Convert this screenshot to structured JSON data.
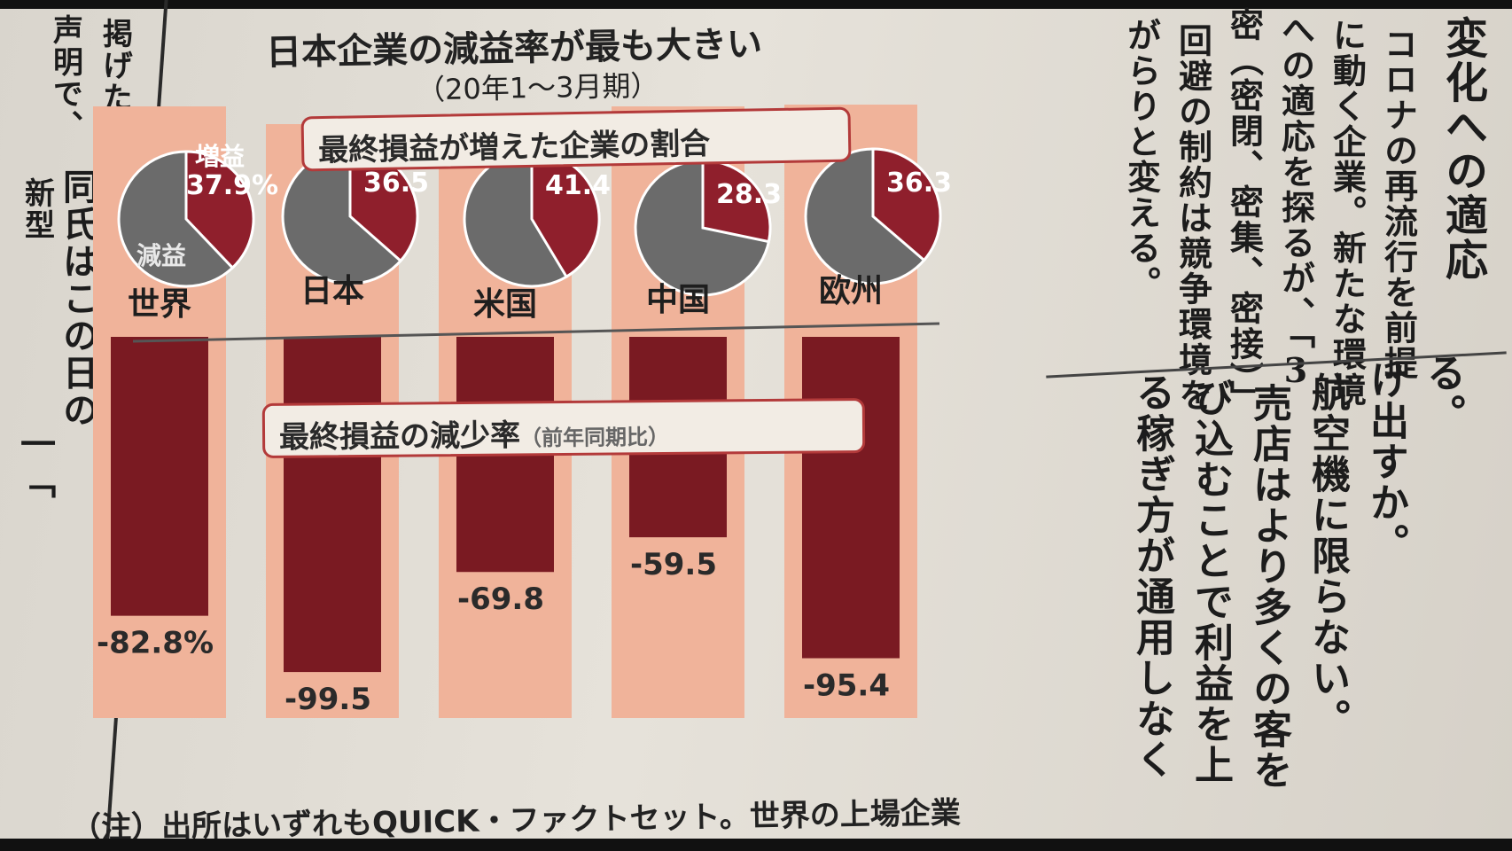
{
  "colors": {
    "column_bg": "#f0b39a",
    "decrease_bar": "#7a1a22",
    "pie_increase": "#8f1f2c",
    "pie_decrease": "#6b6b6b"
  },
  "chart": {
    "title": "日本企業の減益率が最も大きい",
    "subtitle": "（20年1～3月期）",
    "pie_section_title": "最終損益が増えた企業の割合",
    "bar_section_title": "最終損益の減少率",
    "bar_section_note": "（前年同期比）",
    "legend_increase": "増益",
    "legend_decrease": "減益",
    "note": "（注）出所はいずれもQUICK・ファクトセット。世界の上場企業"
  },
  "chart_data": [
    {
      "type": "pie",
      "title": "最終損益が増えた企業の割合",
      "categories": [
        "世界",
        "日本",
        "米国",
        "中国",
        "欧州"
      ],
      "labels": [
        "37.9%",
        "36.5",
        "41.4",
        "28.3",
        "36.3"
      ],
      "values": [
        37.9,
        36.5,
        41.4,
        28.3,
        36.3
      ],
      "slice_names": [
        "増益",
        "減益"
      ]
    },
    {
      "type": "bar",
      "title": "最終損益の減少率（前年同期比）",
      "categories": [
        "世界",
        "日本",
        "米国",
        "中国",
        "欧州"
      ],
      "labels": [
        "-82.8%",
        "-99.5",
        "-69.8",
        "-59.5",
        "-95.4"
      ],
      "values": [
        -82.8,
        -99.5,
        -69.8,
        -59.5,
        -95.4
      ]
    }
  ],
  "article": {
    "left_fragments": [
      "掲げた。",
      "声明で、",
      "新型",
      "同氏はこの日の",
      "一「"
    ],
    "top_right": [
      "変化への適応",
      "コロナの再流行を前提",
      "に動く企業。新たな環境",
      "への適応を探るが、「3",
      "密（密閉、密集、密接）」",
      "回避の制約は競争環境を",
      "がらりと変える。"
    ],
    "bottom_right": [
      "る。",
      "け出すか。",
      "航空機に限らない。",
      "売店はより多くの客を",
      "び込むことで利益を上",
      "る稼ぎ方が通用しなく"
    ]
  }
}
